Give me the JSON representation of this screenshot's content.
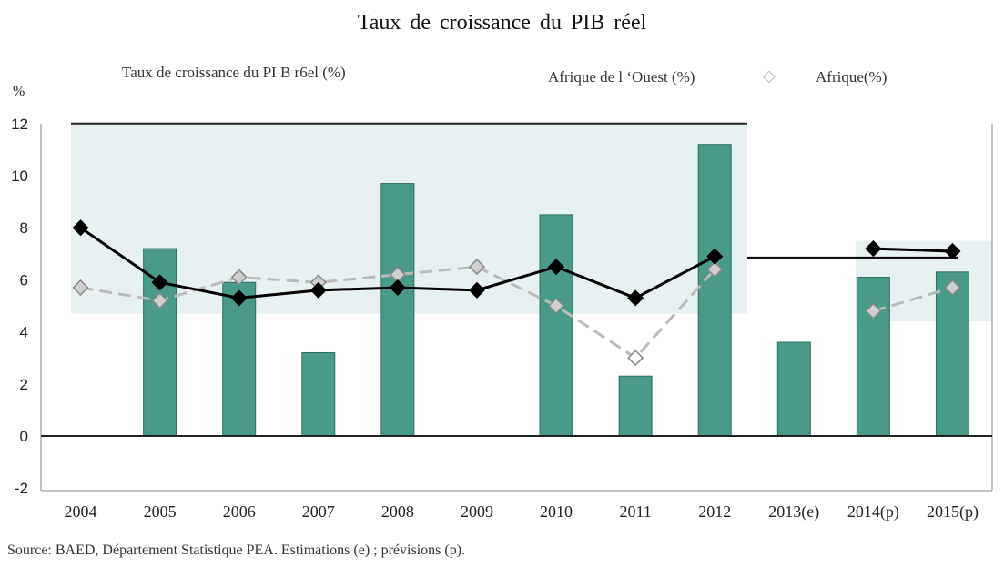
{
  "chart_data": {
    "type": "bar",
    "title": "Taux  de  croissance du  PIB réel",
    "unit_label": "%",
    "categories": [
      "2004",
      "2005",
      "2006",
      "2007",
      "2008",
      "2009",
      "2010",
      "2011",
      "2012",
      "2013(e)",
      "2014(p)",
      "2015(p)"
    ],
    "series": [
      {
        "name": "Taux de croissance du PI B r6el  (%)",
        "kind": "bar",
        "values": [
          null,
          7.2,
          5.9,
          3.2,
          9.7,
          null,
          8.5,
          2.3,
          11.2,
          3.6,
          6.1,
          6.3
        ]
      },
      {
        "name": "Afrique de l ‘Ouest  (%)",
        "kind": "line",
        "values": [
          8.0,
          5.9,
          5.3,
          5.6,
          5.7,
          5.6,
          6.5,
          5.3,
          6.9,
          null,
          7.2,
          7.1
        ]
      },
      {
        "name": "Afrique(%)",
        "kind": "line-dashed",
        "values": [
          5.7,
          5.2,
          6.1,
          5.9,
          6.2,
          6.5,
          5.0,
          3.0,
          6.4,
          null,
          4.8,
          5.7
        ]
      }
    ],
    "ylim": [
      -2,
      12
    ],
    "yticks": [
      -2,
      0,
      2,
      4,
      6,
      8,
      10,
      12
    ],
    "legend_position": "top",
    "colors": {
      "bar": "#4a9a8a",
      "west_africa": "#000000",
      "africa": "#bbbbbb",
      "band": "#e8f1f1"
    }
  },
  "source": "Source: BAED, Département Statistique  PEA.  Estimations  (e) ; prévisions  (p)."
}
